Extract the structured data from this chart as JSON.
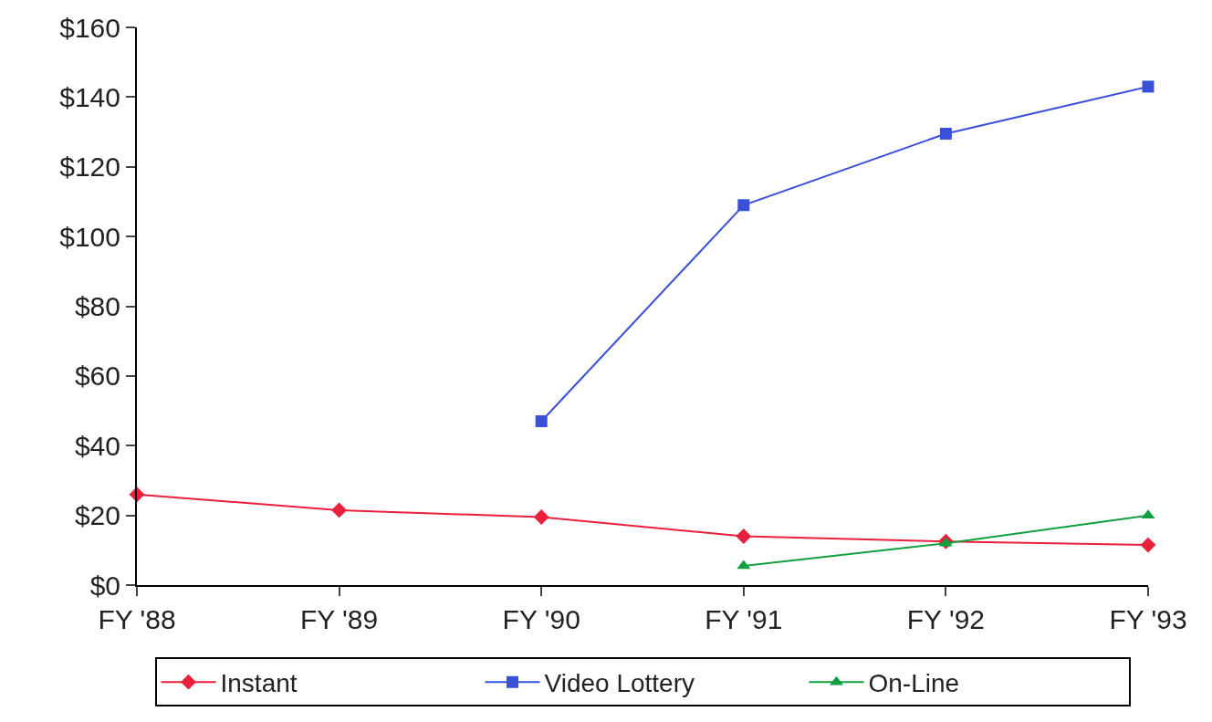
{
  "chart_data": {
    "type": "line",
    "categories": [
      "FY '88",
      "FY '89",
      "FY '90",
      "FY '91",
      "FY '92",
      "FY '93"
    ],
    "series": [
      {
        "name": "Instant",
        "color": "#e8203c",
        "marker": "diamond",
        "values": [
          26,
          21.5,
          19.5,
          14,
          12.5,
          11.5
        ]
      },
      {
        "name": "Video Lottery",
        "color": "#3a50d8",
        "marker": "square",
        "values": [
          null,
          null,
          47,
          109,
          129.5,
          143
        ]
      },
      {
        "name": "On-Line",
        "color": "#10a040",
        "marker": "triangle",
        "values": [
          null,
          null,
          null,
          5.5,
          12,
          20
        ]
      }
    ],
    "ylim": [
      0,
      160
    ],
    "yticks": [
      {
        "value": 0,
        "label": "$0"
      },
      {
        "value": 20,
        "label": "$20"
      },
      {
        "value": 40,
        "label": "$40"
      },
      {
        "value": 60,
        "label": "$60"
      },
      {
        "value": 80,
        "label": "$80"
      },
      {
        "value": 100,
        "label": "$100"
      },
      {
        "value": 120,
        "label": "$120"
      },
      {
        "value": 140,
        "label": "$140"
      },
      {
        "value": 160,
        "label": "$160"
      }
    ],
    "legend": "bottom"
  }
}
